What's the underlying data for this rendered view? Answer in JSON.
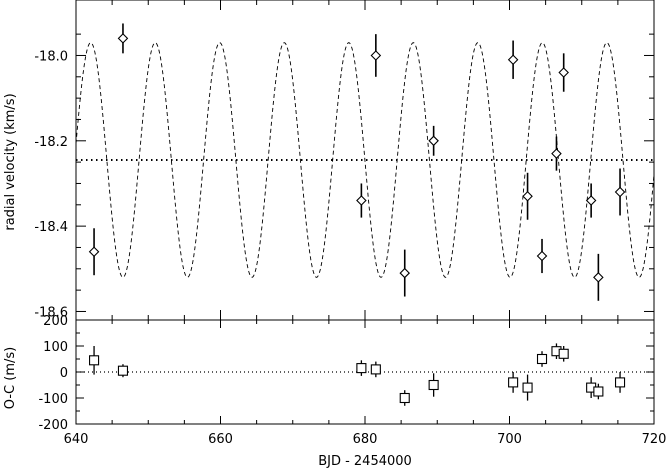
{
  "chart_data": [
    {
      "type": "scatter",
      "title": "",
      "xlabel": "",
      "ylabel": "radial velocity (km/s)",
      "xlim": [
        640,
        720
      ],
      "ylim": [
        -18.62,
        -17.87
      ],
      "yticks": [
        -18.6,
        -18.4,
        -18.2,
        -18.0
      ],
      "ytick_labels": [
        "-18.6",
        "-18.4",
        "-18.2",
        "-18.0"
      ],
      "reference_line": {
        "y": -18.245,
        "style": "dotted"
      },
      "model_curve": {
        "style": "dashed",
        "mean": -18.245,
        "amplitude": 0.275,
        "period": 8.93,
        "phase_zero": 646.5
      },
      "series": [
        {
          "marker": "diamond",
          "x": [
            642.5,
            646.5,
            679.5,
            681.5,
            685.5,
            689.5,
            700.5,
            702.5,
            704.5,
            706.5,
            707.5,
            711.3,
            712.3,
            715.3
          ],
          "y": [
            -18.46,
            -17.96,
            -18.34,
            -18.0,
            -18.51,
            -18.2,
            -18.01,
            -18.33,
            -18.47,
            -18.23,
            -18.04,
            -18.34,
            -18.52,
            -18.32
          ],
          "yerr": [
            0.055,
            0.035,
            0.04,
            0.05,
            0.055,
            0.035,
            0.045,
            0.055,
            0.04,
            0.04,
            0.045,
            0.04,
            0.055,
            0.055
          ]
        }
      ]
    },
    {
      "type": "scatter",
      "title": "",
      "xlabel": "BJD - 2454000",
      "ylabel": "O-C (m/s)",
      "xlim": [
        640,
        720
      ],
      "ylim": [
        -200,
        200
      ],
      "xticks": [
        640,
        660,
        680,
        700,
        720
      ],
      "xtick_labels": [
        "640",
        "660",
        "680",
        "700",
        "720"
      ],
      "yticks": [
        -200,
        -100,
        0,
        100,
        200
      ],
      "ytick_labels": [
        "-200",
        "-100",
        "0",
        "100",
        "200"
      ],
      "reference_line": {
        "y": 0,
        "style": "dotted"
      },
      "series": [
        {
          "marker": "square",
          "x": [
            642.5,
            646.5,
            679.5,
            681.5,
            685.5,
            689.5,
            700.5,
            702.5,
            704.5,
            706.5,
            707.5,
            711.3,
            712.3,
            715.3
          ],
          "y": [
            45,
            5,
            15,
            10,
            -100,
            -50,
            -40,
            -60,
            50,
            80,
            70,
            -60,
            -75,
            -40
          ],
          "yerr": [
            55,
            25,
            30,
            30,
            30,
            45,
            40,
            50,
            30,
            30,
            30,
            40,
            30,
            40
          ]
        }
      ]
    }
  ]
}
